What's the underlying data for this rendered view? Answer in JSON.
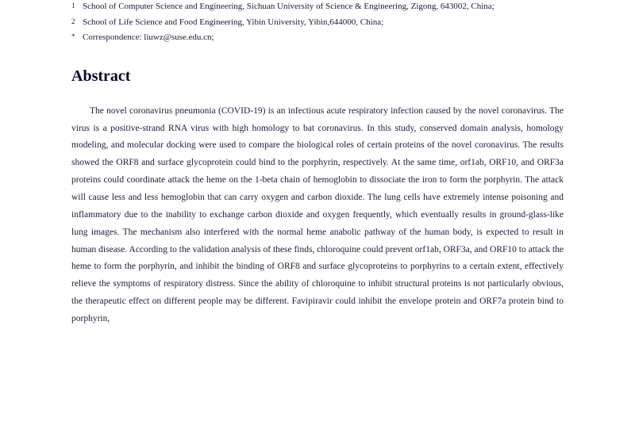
{
  "affiliations": [
    {
      "marker": "1",
      "text": "School of Computer Science and Engineering, Sichuan University of Science & Engineering, Zigong, 643002, China;"
    },
    {
      "marker": "2",
      "text": "School of Life Science and Food Engineering, Yibin University, Yibin,644000, China;"
    },
    {
      "marker": "*",
      "text": "Correspondence: liuwz@suse.edu.cn;"
    }
  ],
  "abstract": {
    "heading": "Abstract",
    "body": "The novel coronavirus pneumonia (COVID-19) is an infectious acute respiratory infection caused by the novel coronavirus. The virus is a positive-strand RNA virus with high homology to bat coronavirus. In this study, conserved domain analysis, homology modeling, and molecular docking were used to compare the biological roles of certain proteins of the novel coronavirus. The results showed the ORF8 and surface glycoprotein could bind to the porphyrin, respectively. At the same time, orf1ab, ORF10, and ORF3a proteins could coordinate attack the heme on the 1-beta chain of hemoglobin to dissociate the iron to form the porphyrin. The attack will cause less and less hemoglobin that can carry oxygen and carbon dioxide. The lung cells have extremely intense poisoning and inflammatory due to the inability to exchange carbon dioxide and oxygen frequently, which eventually results in ground-glass-like lung images. The mechanism also interfered with the normal heme anabolic pathway of the human body, is expected to result in human disease. According to the validation analysis of these finds, chloroquine could prevent orf1ab, ORF3a, and ORF10 to attack the heme to form the porphyrin, and inhibit the binding of ORF8 and surface glycoproteins to porphyrins to a certain extent, effectively relieve the symptoms of respiratory distress. Since the ability of chloroquine to inhibit structural proteins is not particularly obvious, the therapeutic effect on different people may be different. Favipiravir could inhibit the envelope protein and ORF7a protein bind to porphyrin,"
  },
  "colors": {
    "text": "#1a1a3a",
    "heading": "#0a0a2a",
    "background": "#ffffff"
  },
  "typography": {
    "body_font": "Georgia, Times New Roman, serif",
    "affil_fontsize": 11,
    "heading_fontsize": 20,
    "body_fontsize": 11.5,
    "line_height": 1.9
  }
}
